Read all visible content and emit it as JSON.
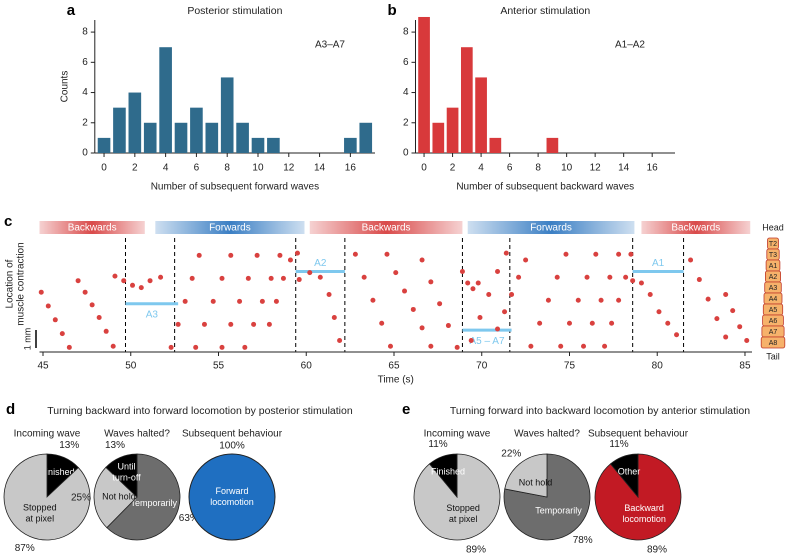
{
  "chart_data": [
    {
      "type": "bar",
      "panel": "a",
      "title": "Posterior stimulation",
      "annotation": "A3–A7",
      "x": [
        0,
        1,
        2,
        3,
        4,
        5,
        6,
        7,
        8,
        9,
        10,
        11,
        12,
        13,
        14,
        15,
        16,
        17
      ],
      "values": [
        1,
        3,
        4,
        2,
        7,
        2,
        3,
        2,
        5,
        2,
        1,
        1,
        0,
        0,
        0,
        0,
        1,
        2
      ],
      "color": "#2f6b8c",
      "xlim": [
        -0.6,
        17.6
      ],
      "xticks": [
        0,
        2,
        4,
        6,
        8,
        10,
        12,
        14,
        16
      ],
      "ylim": [
        0,
        8.8
      ],
      "yticks": [
        0,
        2,
        4,
        6,
        8
      ],
      "xlabel": "Number of subsequent forward waves",
      "ylabel": "Counts"
    },
    {
      "type": "bar",
      "panel": "b",
      "title": "Anterior stimulation",
      "annotation": "A1–A2",
      "x": [
        0,
        1,
        2,
        3,
        4,
        5,
        6,
        7,
        8,
        9,
        10,
        11,
        12,
        13,
        14,
        15,
        16,
        17
      ],
      "values": [
        9,
        2,
        3,
        7,
        5,
        1,
        0,
        0,
        0,
        1,
        0,
        0,
        0,
        0,
        0,
        0,
        0,
        0
      ],
      "color": "#d8393b",
      "xlim": [
        -0.6,
        17.6
      ],
      "xticks": [
        0,
        2,
        4,
        6,
        8,
        10,
        12,
        14,
        16
      ],
      "ylim": [
        0,
        8.8
      ],
      "yticks": [
        0,
        2,
        4,
        6,
        8
      ],
      "xlabel": "Number of subsequent backward waves"
    },
    {
      "type": "scatter",
      "panel": "c",
      "xlim": [
        44.8,
        85.4
      ],
      "xticks": [
        45,
        50,
        55,
        60,
        65,
        70,
        75,
        80,
        85
      ],
      "ylim": [
        0,
        10
      ],
      "xlabel": "Time (s)",
      "ylabel": [
        "Location of",
        "muscle contraction"
      ],
      "scale_bar": "1 mm",
      "phases": [
        {
          "label": "Backwards",
          "start": 44.8,
          "end": 50.8,
          "color": "#d94a4a"
        },
        {
          "label": "Forwards",
          "start": 51.4,
          "end": 59.9,
          "color": "#3b7fc4"
        },
        {
          "label": "Backwards",
          "start": 60.2,
          "end": 68.9,
          "color": "#d94a4a"
        },
        {
          "label": "Forwards",
          "start": 69.2,
          "end": 78.7,
          "color": "#3b7fc4"
        },
        {
          "label": "Backwards",
          "start": 79.1,
          "end": 85.3,
          "color": "#d94a4a"
        }
      ],
      "dividers": [
        49.7,
        52.5,
        59.4,
        62.2,
        68.9,
        71.6,
        78.6,
        81.5
      ],
      "halt_color": "#7ec8ee",
      "halts": [
        {
          "label": "A3",
          "start": 49.7,
          "end": 52.7,
          "y": 4.2
        },
        {
          "label": "A2",
          "start": 59.4,
          "end": 62.2,
          "y": 7.0
        },
        {
          "label": "A5 – A7",
          "start": 68.9,
          "end": 71.7,
          "y": 1.9
        },
        {
          "label": "A1",
          "start": 78.6,
          "end": 81.5,
          "y": 7.0
        }
      ],
      "body": {
        "head": "Head",
        "tail": "Tail",
        "segments": [
          "T2",
          "T3",
          "A1",
          "A2",
          "A3",
          "A4",
          "A5",
          "A6",
          "A7",
          "A8"
        ]
      },
      "series": [
        {
          "color": "#d9413f",
          "x": [
            44.9,
            45.3,
            45.7,
            46.1,
            46.5
          ],
          "values": [
            5.2,
            4.0,
            2.8,
            1.6,
            0.4
          ]
        },
        {
          "color": "#d9413f",
          "x": [
            47.0,
            47.4,
            47.8,
            48.2,
            48.6,
            49.0
          ],
          "values": [
            6.2,
            5.2,
            4.1,
            3.0,
            1.8,
            0.5
          ]
        },
        {
          "color": "#d9413f",
          "x": [
            49.1,
            49.6,
            50.1,
            50.6,
            51.1,
            51.7
          ],
          "values": [
            6.6,
            6.2,
            5.8,
            5.6,
            6.2,
            6.5
          ]
        },
        {
          "color": "#d9413f",
          "x": [
            52.3,
            52.7,
            53.1,
            53.5,
            53.9
          ],
          "values": [
            0.4,
            2.4,
            4.4,
            6.4,
            8.4
          ]
        },
        {
          "color": "#d9413f",
          "x": [
            53.7,
            54.2,
            54.7,
            55.2,
            55.7
          ],
          "values": [
            0.4,
            2.4,
            4.4,
            6.4,
            8.4
          ]
        },
        {
          "color": "#d9413f",
          "x": [
            55.2,
            55.7,
            56.2,
            56.7,
            57.2
          ],
          "values": [
            0.4,
            2.4,
            4.4,
            6.4,
            8.4
          ]
        },
        {
          "color": "#d9413f",
          "x": [
            56.5,
            57.0,
            57.5,
            58.0,
            58.5
          ],
          "values": [
            0.4,
            2.4,
            4.4,
            6.4,
            8.4
          ]
        },
        {
          "color": "#d9413f",
          "x": [
            57.9,
            58.3,
            58.7,
            59.1,
            59.5
          ],
          "values": [
            2.4,
            4.4,
            6.4,
            8.0,
            8.6
          ]
        },
        {
          "color": "#d9413f",
          "x": [
            59.6,
            60.2,
            60.8,
            61.3,
            61.6,
            61.9
          ],
          "values": [
            6.3,
            6.9,
            6.5,
            5.0,
            3.0,
            1.0
          ]
        },
        {
          "color": "#d9413f",
          "x": [
            62.8,
            63.3,
            63.8,
            64.3,
            64.8
          ],
          "values": [
            8.5,
            6.5,
            4.5,
            2.5,
            0.5
          ]
        },
        {
          "color": "#d9413f",
          "x": [
            64.6,
            65.1,
            65.6,
            66.1,
            66.6,
            67.1
          ],
          "values": [
            8.5,
            6.9,
            5.3,
            3.7,
            2.1,
            0.5
          ]
        },
        {
          "color": "#d9413f",
          "x": [
            66.6,
            67.1,
            67.6,
            68.1,
            68.6
          ],
          "values": [
            8.0,
            6.1,
            4.2,
            2.3,
            0.4
          ]
        },
        {
          "color": "#d9413f",
          "x": [
            68.9,
            69.2,
            69.5,
            69.8
          ],
          "values": [
            7.0,
            6.0,
            5.5,
            6.0
          ]
        },
        {
          "color": "#d9413f",
          "x": [
            69.4,
            69.9,
            70.4,
            70.9,
            71.4
          ],
          "values": [
            1.0,
            3.0,
            5.0,
            7.0,
            8.6
          ]
        },
        {
          "color": "#d9413f",
          "x": [
            70.9,
            71.3,
            71.7,
            72.1,
            72.5
          ],
          "values": [
            2.0,
            3.5,
            5.0,
            6.5,
            8.0
          ]
        },
        {
          "color": "#d9413f",
          "x": [
            72.8,
            73.3,
            73.8,
            74.3,
            74.8
          ],
          "values": [
            0.5,
            2.5,
            4.5,
            6.5,
            8.5
          ]
        },
        {
          "color": "#d9413f",
          "x": [
            74.5,
            75.0,
            75.5,
            76.0,
            76.5
          ],
          "values": [
            0.5,
            2.5,
            4.5,
            6.5,
            8.5
          ]
        },
        {
          "color": "#d9413f",
          "x": [
            75.8,
            76.3,
            76.8,
            77.3,
            77.8
          ],
          "values": [
            0.5,
            2.5,
            4.5,
            6.5,
            8.5
          ]
        },
        {
          "color": "#d9413f",
          "x": [
            77.0,
            77.4,
            77.8,
            78.2,
            78.5
          ],
          "values": [
            0.5,
            2.5,
            4.5,
            6.5,
            8.5
          ]
        },
        {
          "color": "#d9413f",
          "x": [
            78.6,
            79.1,
            79.6,
            80.1,
            80.6,
            81.1
          ],
          "values": [
            6.2,
            6.0,
            5.0,
            3.5,
            2.5,
            1.5
          ]
        },
        {
          "color": "#d9413f",
          "x": [
            81.9,
            82.4,
            82.9,
            83.4,
            83.9
          ],
          "values": [
            8.0,
            6.3,
            4.6,
            2.9,
            1.3
          ]
        },
        {
          "color": "#d9413f",
          "x": [
            83.9,
            84.3,
            84.7,
            85.1
          ],
          "values": [
            5.0,
            3.6,
            2.2,
            1.0
          ]
        }
      ]
    },
    {
      "type": "pie",
      "panel": "d",
      "title": "Turning backward into forward locomotion by posterior stimulation",
      "pies": [
        {
          "title": "Incoming wave",
          "categories": [
            [
              "Finished"
            ],
            [
              "Stopped",
              "at pixel"
            ]
          ],
          "values": [
            13,
            87
          ],
          "value_labels": [
            "13%",
            "87%"
          ],
          "colors": [
            "#000000",
            "#c8c8c8"
          ]
        },
        {
          "title": "Waves halted?",
          "categories": [
            [
              "Temporarily"
            ],
            [
              "Not hold"
            ],
            [
              "Until",
              "turn-off"
            ]
          ],
          "values": [
            63,
            25,
            13
          ],
          "value_labels": [
            "63%",
            "25%",
            "13%"
          ],
          "colors": [
            "#6d6d6d",
            "#c8c8c8",
            "#000000"
          ]
        },
        {
          "title": "Subsequent behaviour",
          "categories": [
            [
              "Forward",
              "locomotion"
            ]
          ],
          "values": [
            100
          ],
          "value_labels": [
            "100%"
          ],
          "colors": [
            "#1f6fc1"
          ]
        }
      ]
    },
    {
      "type": "pie",
      "panel": "e",
      "title": "Turning forward into backward locomotion by anterior stimulation",
      "pies": [
        {
          "title": "Incoming wave",
          "categories": [
            [
              "Stopped",
              "at pixel"
            ],
            [
              "Finished"
            ]
          ],
          "values": [
            89,
            11
          ],
          "value_labels": [
            "89%",
            "11%"
          ],
          "colors": [
            "#c8c8c8",
            "#000000"
          ]
        },
        {
          "title": "Waves halted?",
          "categories": [
            [
              "Temporarily"
            ],
            [
              "Not hold"
            ]
          ],
          "values": [
            78,
            22
          ],
          "value_labels": [
            "78%",
            "22%"
          ],
          "colors": [
            "#6d6d6d",
            "#c8c8c8"
          ]
        },
        {
          "title": "Subsequent behaviour",
          "categories": [
            [
              "Backward",
              "locomotion"
            ],
            [
              "Other"
            ]
          ],
          "values": [
            89,
            11
          ],
          "value_labels": [
            "89%",
            "11%"
          ],
          "colors": [
            "#c21a24",
            "#000000"
          ]
        }
      ]
    }
  ]
}
